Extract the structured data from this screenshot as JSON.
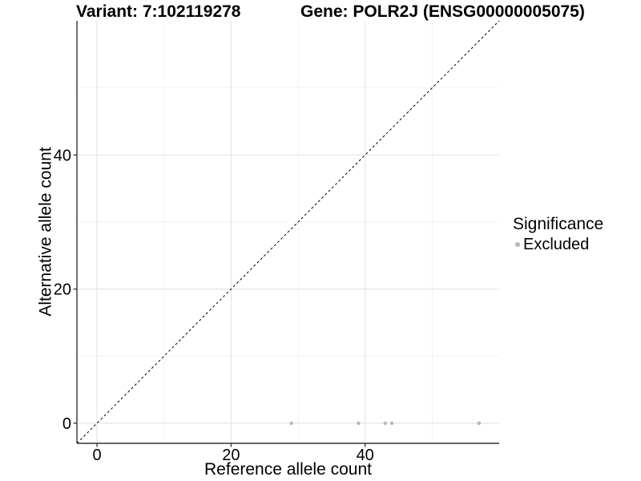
{
  "chart_data": {
    "type": "scatter",
    "title_left": "Variant: 7:102119278",
    "title_right": "Gene: POLR2J (ENSG00000005075)",
    "xlabel": "Reference allele count",
    "ylabel": "Alternative allele count",
    "xlim": [
      -3,
      60
    ],
    "ylim": [
      -3,
      60
    ],
    "x_major_ticks": [
      0,
      20,
      40
    ],
    "y_major_ticks": [
      0,
      20,
      40
    ],
    "x_minor_ticks": [
      10,
      30,
      50
    ],
    "y_minor_ticks": [
      10,
      30,
      50
    ],
    "grid": true,
    "reference_line": {
      "style": "dashed",
      "from": [
        -3,
        -3
      ],
      "to": [
        60,
        60
      ],
      "color": "#000000",
      "meaning": "identity line y = x"
    },
    "series": [
      {
        "name": "Excluded",
        "color": "#b5b5b5",
        "points": [
          {
            "x": 29,
            "y": 0
          },
          {
            "x": 39,
            "y": 0
          },
          {
            "x": 43,
            "y": 0
          },
          {
            "x": 44,
            "y": 0
          },
          {
            "x": 57,
            "y": 0
          }
        ]
      }
    ],
    "legend": {
      "position": "right",
      "title": "Significance",
      "entries": [
        {
          "label": "Excluded",
          "color": "#b5b5b5"
        }
      ]
    }
  },
  "colors": {
    "background": "#ffffff",
    "grid_major": "#e5e5e5",
    "grid_minor": "#f0f0f0",
    "axis_line": "#333333",
    "tick_text": "#000000",
    "point": "#b5b5b5",
    "reference_line": "#000000"
  }
}
